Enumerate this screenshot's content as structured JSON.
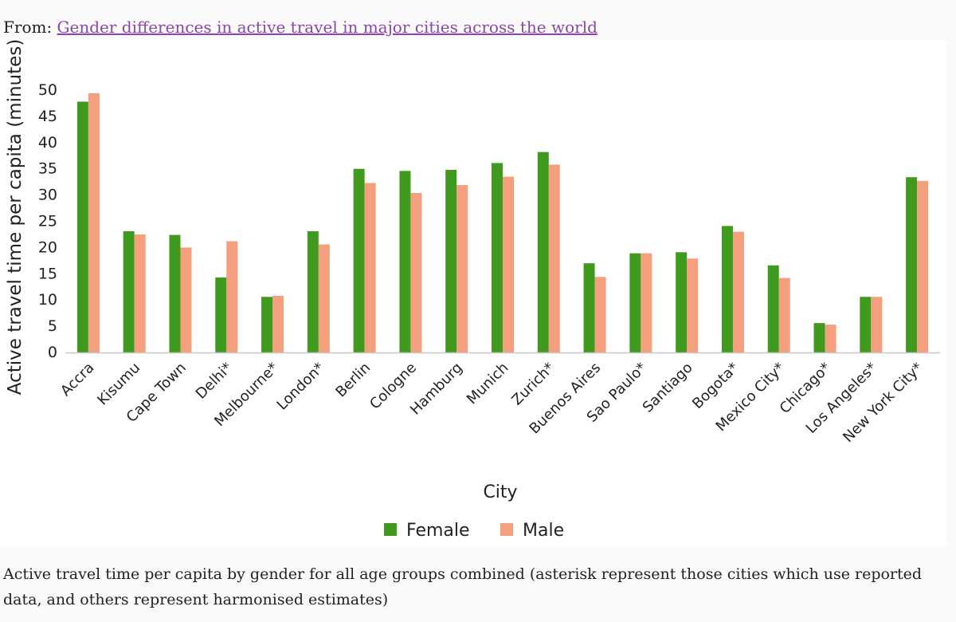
{
  "source": {
    "prefix": "From:",
    "link_text": "Gender differences in active travel in major cities across the world"
  },
  "caption": "Active travel time per capita by gender for all age groups combined (asterisk represent those cities which use reported data, and others represent harmonised estimates)",
  "colors": {
    "female": "#3f9a1e",
    "male": "#f4a07e",
    "axis": "#c8c8c8",
    "link": "#8e44ad"
  },
  "chart_data": {
    "type": "bar",
    "title": "",
    "xlabel": "City",
    "ylabel": "Active travel time per capita (minutes)",
    "ylim": [
      0,
      50
    ],
    "yticks": [
      "0",
      "5",
      "10",
      "15",
      "20",
      "25",
      "30",
      "35",
      "40",
      "45",
      "50"
    ],
    "grid": false,
    "legend_position": "bottom-center",
    "categories": [
      "Accra",
      "Kisumu",
      "Cape Town",
      "Delhi*",
      "Melbourne*",
      "London*",
      "Berlin",
      "Cologne",
      "Hamburg",
      "Munich",
      "Zurich*",
      "Buenos Aires",
      "Sao Paulo*",
      "Santiago",
      "Bogota*",
      "Mexico City*",
      "Chicago*",
      "Los Angeles*",
      "New York City*"
    ],
    "series": [
      {
        "name": "Female",
        "values": [
          47.8,
          23.1,
          22.4,
          14.3,
          10.6,
          23.1,
          35.0,
          34.6,
          34.8,
          36.1,
          38.2,
          17.0,
          18.9,
          19.1,
          24.1,
          16.6,
          5.6,
          10.6,
          33.4
        ]
      },
      {
        "name": "Male",
        "values": [
          49.4,
          22.5,
          20.0,
          21.2,
          10.8,
          20.6,
          32.3,
          30.4,
          31.9,
          33.5,
          35.8,
          14.4,
          18.9,
          17.9,
          23.0,
          14.2,
          5.3,
          10.6,
          32.7
        ]
      }
    ]
  }
}
